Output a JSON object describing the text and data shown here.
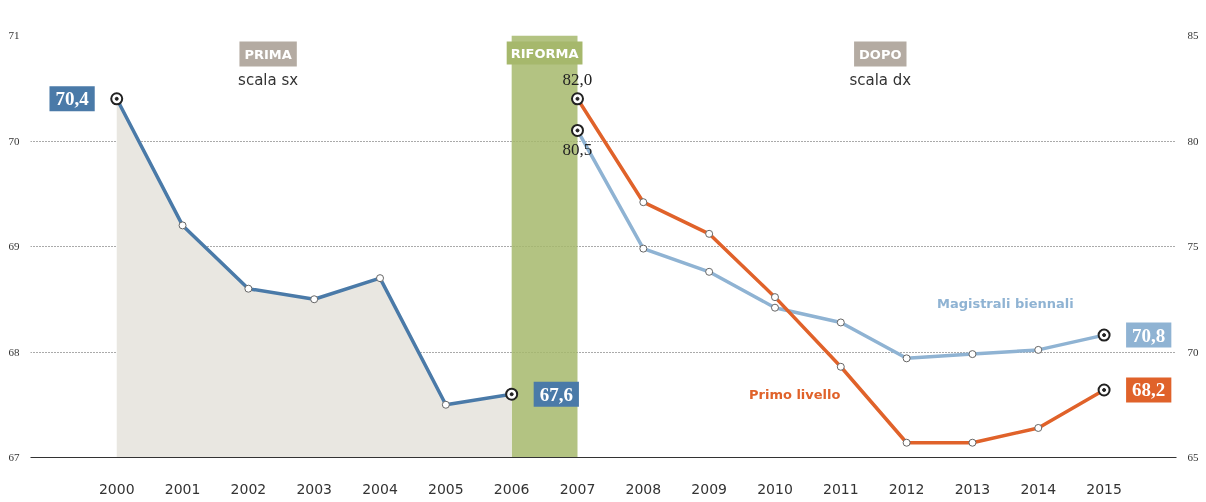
{
  "chart_data": {
    "type": "line",
    "categories": [
      "2000",
      "2001",
      "2002",
      "2003",
      "2004",
      "2005",
      "2006",
      "2007",
      "2008",
      "2009",
      "2010",
      "2011",
      "2012",
      "2013",
      "2014",
      "2015"
    ],
    "series": [
      {
        "type": "area",
        "color": "#4a7aa8",
        "values": [
          70.4,
          69.2,
          68.6,
          68.5,
          68.7,
          67.5,
          67.6,
          null,
          null,
          null,
          null,
          null,
          null,
          null,
          null,
          null
        ],
        "value_labels": [
          "70,4",
          null,
          null,
          null,
          null,
          null,
          "67,6",
          null,
          null,
          null,
          null,
          null,
          null,
          null,
          null,
          null
        ]
      },
      {
        "name": "Magistrali biennali",
        "color": "#8fb3d3",
        "axis": "y2",
        "values": [
          null,
          null,
          null,
          null,
          null,
          null,
          null,
          80.5,
          74.9,
          73.8,
          72.1,
          71.4,
          69.7,
          69.9,
          70.1,
          70.8
        ],
        "value_labels": [
          null,
          null,
          null,
          null,
          null,
          null,
          null,
          "80,5",
          null,
          null,
          null,
          null,
          null,
          null,
          null,
          "70,8"
        ]
      },
      {
        "name": "Primo livello",
        "color": "#e0622a",
        "axis": "y2",
        "values": [
          null,
          null,
          null,
          null,
          null,
          null,
          null,
          82.0,
          77.1,
          75.6,
          72.6,
          69.3,
          65.7,
          65.7,
          66.4,
          68.2
        ],
        "value_labels": [
          null,
          null,
          null,
          null,
          null,
          null,
          null,
          "82,0",
          null,
          null,
          null,
          null,
          null,
          null,
          null,
          "68,2"
        ]
      }
    ],
    "ylim": [
      67,
      71
    ],
    "yticks": [
      67,
      68,
      69,
      70,
      71
    ],
    "y2lim": [
      65,
      85
    ],
    "y2ticks": [
      65,
      70,
      75,
      80,
      85
    ],
    "bands": [
      {
        "axis": "x",
        "from": "2006",
        "to": "2007",
        "label": "RIFORMA",
        "color": "#a6b86c"
      }
    ],
    "annotations": [
      "PRIMA",
      "scala sx",
      "DOPO",
      "scala dx"
    ],
    "grid": "y",
    "marker": "circle",
    "line_style": "solid"
  }
}
